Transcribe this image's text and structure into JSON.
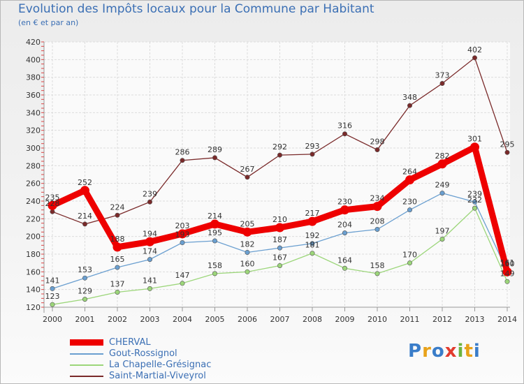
{
  "title": "Evolution des Impôts locaux pour la Commune par Habitant",
  "subtitle": "(en € et par an)",
  "logo": {
    "letters": [
      "P",
      "r",
      "o",
      "x",
      "i",
      "t",
      "i"
    ],
    "colors": [
      "#3a7dc9",
      "#e8a21a",
      "#3a7dc9",
      "#e23b2e",
      "#6cb33f",
      "#e8a21a",
      "#3a7dc9"
    ]
  },
  "chart_data": {
    "type": "line",
    "title": "Evolution des Impôts locaux pour la Commune par Habitant",
    "subtitle": "(en € et par an)",
    "x": [
      "2000",
      "2001",
      "2002",
      "2003",
      "2004",
      "2005",
      "2006",
      "2007",
      "2008",
      "2009",
      "2010",
      "2011",
      "2012",
      "2013",
      "2014"
    ],
    "ylim": [
      120,
      420
    ],
    "yticks": [
      120,
      140,
      160,
      180,
      200,
      220,
      240,
      260,
      280,
      300,
      320,
      340,
      360,
      380,
      400,
      420
    ],
    "grid": true,
    "legend_position": "bottom-left",
    "series": [
      {
        "name": "CHERVAL",
        "color": "#ee0000",
        "highlight": true,
        "values": [
          235,
          252,
          188,
          194,
          203,
          214,
          205,
          210,
          217,
          230,
          234,
          264,
          282,
          301,
          160
        ]
      },
      {
        "name": "Gout-Rossignol",
        "color": "#6a9fd0",
        "highlight": false,
        "values": [
          141,
          153,
          165,
          174,
          193,
          195,
          182,
          187,
          192,
          204,
          208,
          230,
          249,
          239,
          161
        ]
      },
      {
        "name": "La Chapelle-Grésignac",
        "color": "#9cd67a",
        "highlight": false,
        "values": [
          123,
          129,
          137,
          141,
          147,
          158,
          160,
          167,
          181,
          164,
          158,
          170,
          197,
          232,
          149
        ]
      },
      {
        "name": "Saint-Martial-Viveyrol",
        "color": "#7a2a2a",
        "highlight": false,
        "values": [
          228,
          214,
          224,
          239,
          286,
          289,
          267,
          292,
          293,
          316,
          298,
          348,
          373,
          402,
          295
        ]
      }
    ],
    "data_labels": [
      [
        235,
        252,
        188,
        194,
        203,
        214,
        205,
        210,
        217,
        230,
        234,
        264,
        282,
        301,
        160
      ],
      [
        141,
        153,
        165,
        174,
        193,
        195,
        182,
        187,
        192,
        204,
        208,
        230,
        249,
        239,
        161
      ],
      [
        123,
        129,
        137,
        141,
        147,
        158,
        160,
        167,
        181,
        164,
        158,
        170,
        197,
        232,
        149
      ],
      [
        228,
        214,
        224,
        239,
        286,
        289,
        267,
        292,
        293,
        316,
        298,
        348,
        373,
        402,
        295
      ]
    ]
  }
}
